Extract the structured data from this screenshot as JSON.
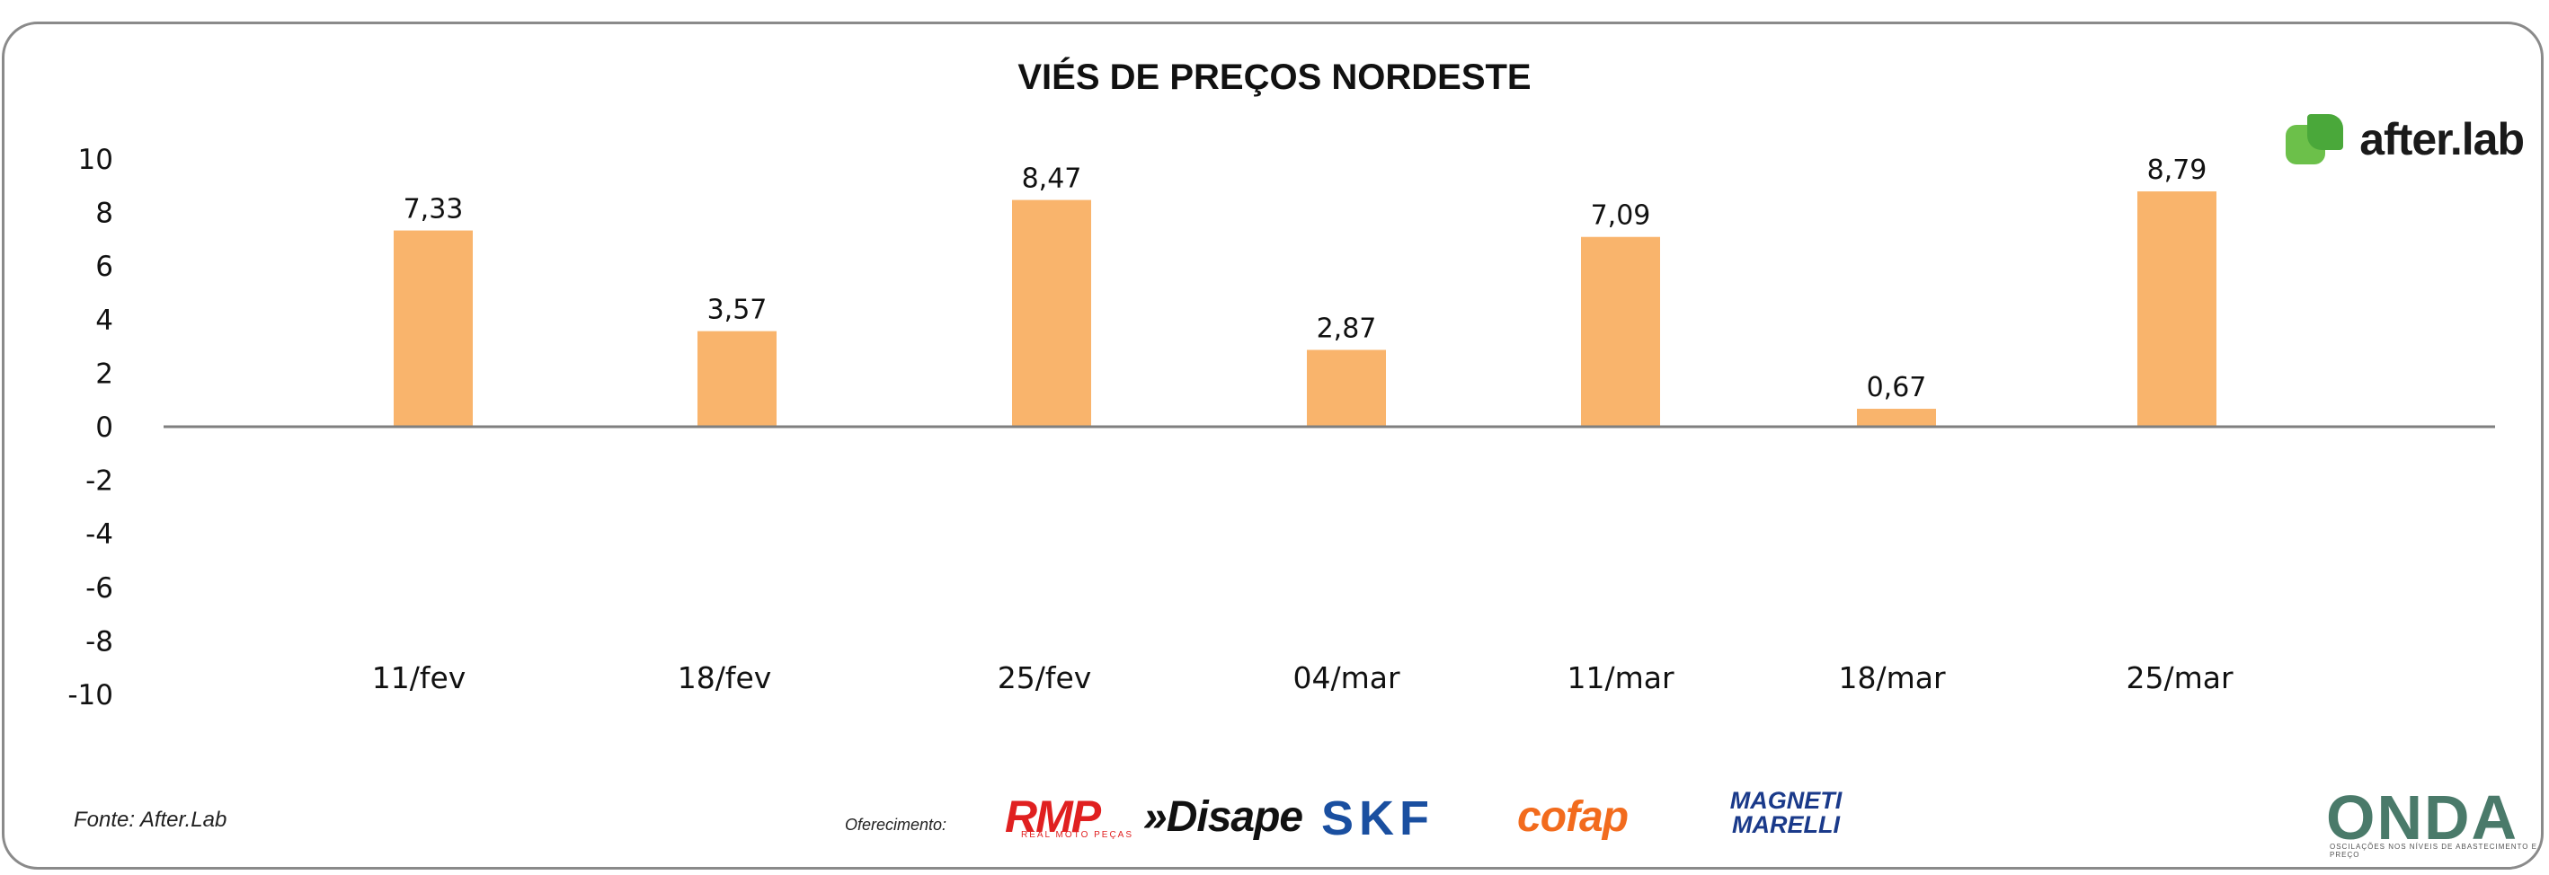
{
  "chart_data": {
    "type": "bar",
    "title": "VIÉS DE PREÇOS NORDESTE",
    "categories": [
      "11/fev",
      "18/fev",
      "25/fev",
      "04/mar",
      "11/mar",
      "18/mar",
      "25/mar"
    ],
    "values": [
      7.33,
      3.57,
      8.47,
      2.87,
      7.09,
      0.67,
      8.79
    ],
    "data_labels": [
      "7,33",
      "3,57",
      "8,47",
      "2,87",
      "7,09",
      "0,67",
      "8,79"
    ],
    "yticks": [
      "10",
      "8",
      "6",
      "4",
      "2",
      "0",
      "-2",
      "-4",
      "-6",
      "-8",
      "-10"
    ],
    "ylim": [
      -10,
      10
    ],
    "bar_color": "#f9b46c",
    "grid": false
  },
  "brand": {
    "logo_text": "after.lab"
  },
  "footer": {
    "source": "Fonte: After.Lab",
    "offer": "Oferecimento:",
    "sponsors": [
      "RMP",
      "»Disape",
      "SKF",
      "cofap",
      "MAGNETI MARELLI"
    ],
    "rmp_sub": "REAL MOTO PEÇAS",
    "onda": "ONDA",
    "onda_sub": "OSCILAÇÕES NOS NÍVEIS DE ABASTECIMENTO E PREÇO"
  },
  "colors": {
    "axis": "#7f7f7f",
    "border": "#8a8a8a",
    "accent_green": "#6cc04a"
  }
}
